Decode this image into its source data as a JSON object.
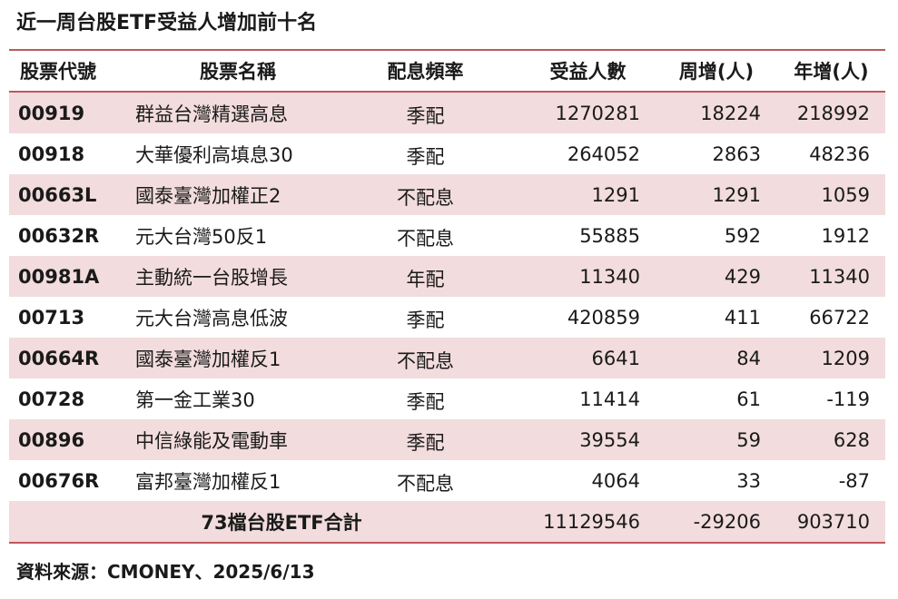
{
  "title": "近一周台股ETF受益人增加前十名",
  "columns": {
    "code": "股票代號",
    "name": "股票名稱",
    "distribution": "配息頻率",
    "beneficiaries": "受益人數",
    "weekly": "周增(人)",
    "yearly": "年增(人)"
  },
  "rows": [
    {
      "code": "00919",
      "name": "群益台灣精選高息",
      "distribution": "季配",
      "beneficiaries": "1270281",
      "weekly": "18224",
      "yearly": "218992"
    },
    {
      "code": "00918",
      "name": "大華優利高填息30",
      "distribution": "季配",
      "beneficiaries": "264052",
      "weekly": "2863",
      "yearly": "48236"
    },
    {
      "code": "00663L",
      "name": "國泰臺灣加權正2",
      "distribution": "不配息",
      "beneficiaries": "1291",
      "weekly": "1291",
      "yearly": "1059"
    },
    {
      "code": "00632R",
      "name": "元大台灣50反1",
      "distribution": "不配息",
      "beneficiaries": "55885",
      "weekly": "592",
      "yearly": "1912"
    },
    {
      "code": "00981A",
      "name": "主動統一台股增長",
      "distribution": "年配",
      "beneficiaries": "11340",
      "weekly": "429",
      "yearly": "11340"
    },
    {
      "code": "00713",
      "name": "元大台灣高息低波",
      "distribution": "季配",
      "beneficiaries": "420859",
      "weekly": "411",
      "yearly": "66722"
    },
    {
      "code": "00664R",
      "name": "國泰臺灣加權反1",
      "distribution": "不配息",
      "beneficiaries": "6641",
      "weekly": "84",
      "yearly": "1209"
    },
    {
      "code": "00728",
      "name": "第一金工業30",
      "distribution": "季配",
      "beneficiaries": "11414",
      "weekly": "61",
      "yearly": "-119"
    },
    {
      "code": "00896",
      "name": "中信綠能及電動車",
      "distribution": "季配",
      "beneficiaries": "39554",
      "weekly": "59",
      "yearly": "628"
    },
    {
      "code": "00676R",
      "name": "富邦臺灣加權反1",
      "distribution": "不配息",
      "beneficiaries": "4064",
      "weekly": "33",
      "yearly": "-87"
    }
  ],
  "total": {
    "label": "73檔台股ETF合計",
    "beneficiaries": "11129546",
    "weekly": "-29206",
    "yearly": "903710"
  },
  "source": "資料來源：CMONEY、2025/6/13"
}
